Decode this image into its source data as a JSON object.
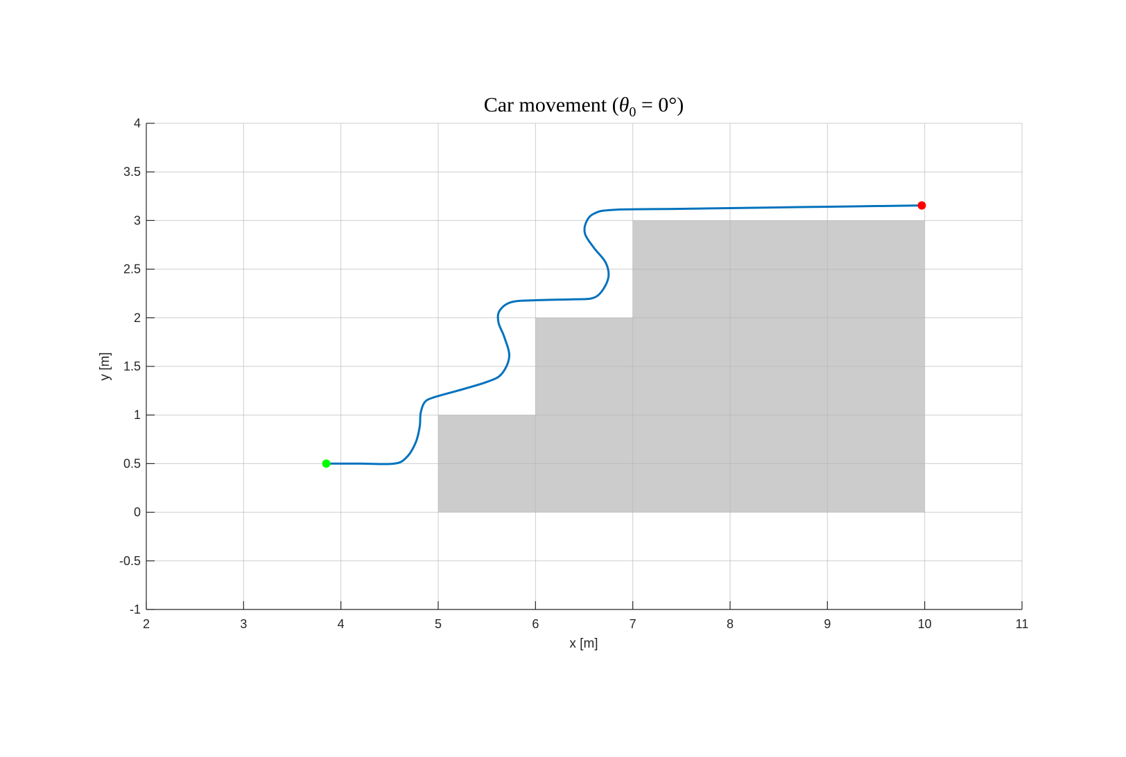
{
  "chart_data": {
    "type": "line",
    "title": "Car movement (θ0 = 0°)",
    "title_parts": {
      "main": "Car movement (",
      "theta": "θ",
      "sub": "0",
      "rest": " = 0°)"
    },
    "xlabel": "x [m]",
    "ylabel": "y [m]",
    "xlim": [
      2,
      11
    ],
    "ylim": [
      -1,
      4
    ],
    "xticks": [
      "2",
      "3",
      "4",
      "5",
      "6",
      "7",
      "8",
      "9",
      "10",
      "11"
    ],
    "yticks": [
      "-1",
      "-0.5",
      "0",
      "0.5",
      "1",
      "1.5",
      "2",
      "2.5",
      "3",
      "3.5",
      "4"
    ],
    "grid": true,
    "obstacles": [
      {
        "x": [
          5,
          6
        ],
        "y": [
          0,
          1
        ]
      },
      {
        "x": [
          6,
          7
        ],
        "y": [
          0,
          2
        ]
      },
      {
        "x": [
          7,
          10
        ],
        "y": [
          0,
          3
        ]
      }
    ],
    "trajectory": {
      "x": [
        3.85,
        4.2,
        4.55,
        4.68,
        4.77,
        4.81,
        4.82,
        4.86,
        4.95,
        5.2,
        5.5,
        5.65,
        5.73,
        5.68,
        5.62,
        5.63,
        5.75,
        6.0,
        6.4,
        6.58,
        6.68,
        6.75,
        6.72,
        6.6,
        6.51,
        6.52,
        6.6,
        6.8,
        7.5,
        8.5,
        9.97
      ],
      "y": [
        0.5,
        0.5,
        0.5,
        0.57,
        0.72,
        0.88,
        1.02,
        1.13,
        1.18,
        1.25,
        1.34,
        1.42,
        1.6,
        1.8,
        1.95,
        2.07,
        2.16,
        2.18,
        2.19,
        2.2,
        2.27,
        2.42,
        2.57,
        2.72,
        2.86,
        2.98,
        3.07,
        3.11,
        3.12,
        3.135,
        3.155
      ]
    },
    "start_point": {
      "x": 3.85,
      "y": 0.5
    },
    "end_point": {
      "x": 9.97,
      "y": 3.155
    },
    "colors": {
      "trajectory": "#0072BD",
      "start": "#00FF00",
      "end": "#FF0000",
      "obstacle": "#CCCCCC",
      "grid": "#E0E0E0"
    }
  }
}
